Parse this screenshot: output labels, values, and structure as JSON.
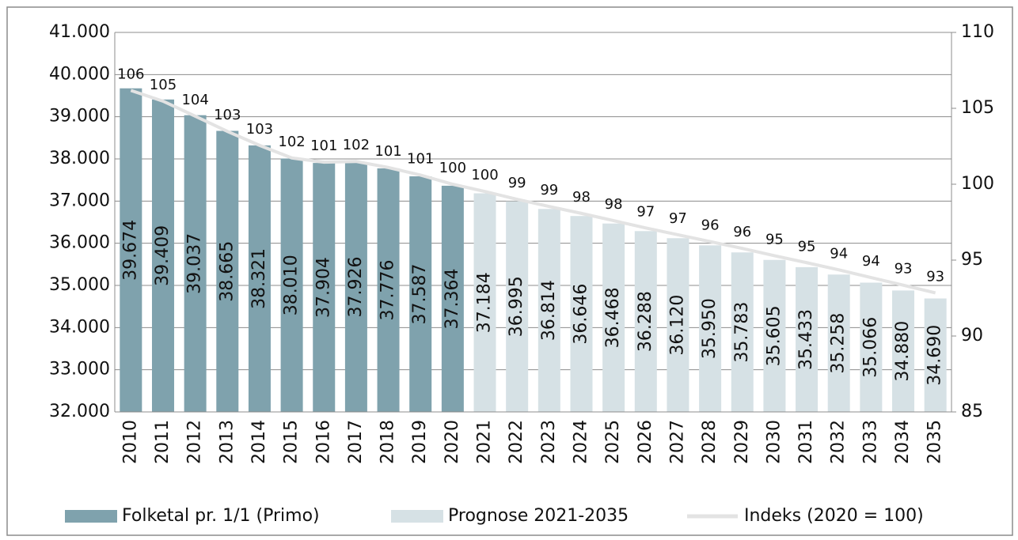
{
  "chart_data": {
    "type": "bar-line",
    "categories": [
      "2010",
      "2011",
      "2012",
      "2013",
      "2014",
      "2015",
      "2016",
      "2017",
      "2018",
      "2019",
      "2020",
      "2021",
      "2022",
      "2023",
      "2024",
      "2025",
      "2026",
      "2027",
      "2028",
      "2029",
      "2030",
      "2031",
      "2032",
      "2033",
      "2034",
      "2035"
    ],
    "series": [
      {
        "name": "Folketal pr. 1/1 (Primo)",
        "type": "bar",
        "color": "#7fa2ad",
        "values": [
          39674,
          39409,
          39037,
          38665,
          38321,
          38010,
          37904,
          37926,
          37776,
          37587,
          37364,
          null,
          null,
          null,
          null,
          null,
          null,
          null,
          null,
          null,
          null,
          null,
          null,
          null,
          null,
          null
        ],
        "value_labels": [
          "39.674",
          "39.409",
          "39.037",
          "38.665",
          "38.321",
          "38.010",
          "37.904",
          "37.926",
          "37.776",
          "37.587",
          "37.364",
          null,
          null,
          null,
          null,
          null,
          null,
          null,
          null,
          null,
          null,
          null,
          null,
          null,
          null,
          null
        ]
      },
      {
        "name": "Prognose 2021-2035",
        "type": "bar",
        "color": "#d6e1e5",
        "values": [
          null,
          null,
          null,
          null,
          null,
          null,
          null,
          null,
          null,
          null,
          null,
          37184,
          36995,
          36814,
          36646,
          36468,
          36288,
          36120,
          35950,
          35783,
          35605,
          35433,
          35258,
          35066,
          34880,
          34690
        ],
        "value_labels": [
          null,
          null,
          null,
          null,
          null,
          null,
          null,
          null,
          null,
          null,
          null,
          "37.184",
          "36.995",
          "36.814",
          "36.646",
          "36.468",
          "36.288",
          "36.120",
          "35.950",
          "35.783",
          "35.605",
          "35.433",
          "35.258",
          "35.066",
          "34.880",
          "34.690"
        ]
      },
      {
        "name": "Indeks (2020 = 100)",
        "type": "line",
        "axis": "y2",
        "color": "#e3e3e3",
        "values": [
          106.18,
          105.47,
          104.48,
          103.48,
          102.56,
          101.73,
          101.45,
          101.5,
          101.1,
          100.6,
          100,
          99.52,
          99.01,
          98.53,
          98.08,
          97.6,
          97.12,
          96.67,
          96.22,
          95.77,
          95.29,
          94.83,
          94.36,
          93.85,
          93.35,
          92.84
        ],
        "value_labels": [
          "106",
          "105",
          "104",
          "103",
          "103",
          "102",
          "101",
          "102",
          "101",
          "101",
          "100",
          "100",
          "99",
          "99",
          "98",
          "98",
          "97",
          "97",
          "96",
          "96",
          "95",
          "95",
          "94",
          "94",
          "93",
          "93"
        ]
      }
    ],
    "ylim": [
      32000,
      41000
    ],
    "yticks": [
      {
        "value": 32000,
        "label": "32.000"
      },
      {
        "value": 33000,
        "label": "33.000"
      },
      {
        "value": 34000,
        "label": "34.000"
      },
      {
        "value": 35000,
        "label": "35.000"
      },
      {
        "value": 36000,
        "label": "36.000"
      },
      {
        "value": 37000,
        "label": "37.000"
      },
      {
        "value": 38000,
        "label": "38.000"
      },
      {
        "value": 39000,
        "label": "39.000"
      },
      {
        "value": 40000,
        "label": "40.000"
      },
      {
        "value": 41000,
        "label": "41.000"
      }
    ],
    "y2lim": [
      85,
      110
    ],
    "y2ticks": [
      85,
      90,
      95,
      100,
      105,
      110
    ],
    "grid": true
  }
}
